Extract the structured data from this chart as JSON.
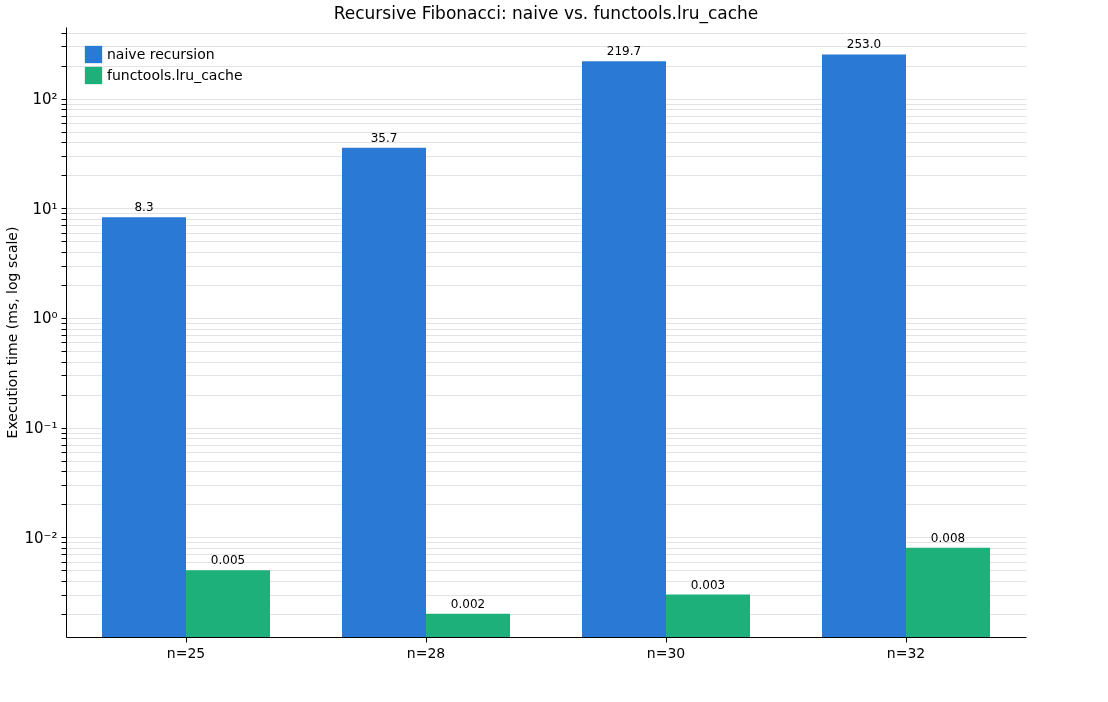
{
  "chart_data": {
    "type": "bar",
    "title": "Recursive Fibonacci: naive vs. functools.lru_cache",
    "ylabel": "Execution time (ms, log scale)",
    "categories": [
      "n=25",
      "n=28",
      "n=30",
      "n=32"
    ],
    "series": [
      {
        "name": "naive recursion",
        "color": "#2a7ad5",
        "values": [
          8.3,
          35.7,
          219.7,
          253.0
        ],
        "value_labels": [
          "8.3",
          "35.7",
          "219.7",
          "253.0"
        ]
      },
      {
        "name": "functools.lru_cache",
        "color": "#1db07a",
        "values": [
          0.005,
          0.002,
          0.003,
          0.008
        ],
        "value_labels": [
          "0.005",
          "0.002",
          "0.003",
          "0.008"
        ]
      }
    ],
    "log": "y",
    "ylim": [
      0.00123,
      450
    ],
    "yticks": [
      {
        "value": 0.002,
        "label": null
      },
      {
        "value": 0.003,
        "label": null
      },
      {
        "value": 0.004,
        "label": null
      },
      {
        "value": 0.005,
        "label": null
      },
      {
        "value": 0.006,
        "label": null
      },
      {
        "value": 0.007,
        "label": null
      },
      {
        "value": 0.008,
        "label": null
      },
      {
        "value": 0.009,
        "label": null
      },
      {
        "value": 0.01,
        "label": "10⁻²"
      },
      {
        "value": 0.02,
        "label": null
      },
      {
        "value": 0.03,
        "label": null
      },
      {
        "value": 0.04,
        "label": null
      },
      {
        "value": 0.05,
        "label": null
      },
      {
        "value": 0.06,
        "label": null
      },
      {
        "value": 0.07,
        "label": null
      },
      {
        "value": 0.08,
        "label": null
      },
      {
        "value": 0.09,
        "label": null
      },
      {
        "value": 0.1,
        "label": "10⁻¹"
      },
      {
        "value": 0.2,
        "label": null
      },
      {
        "value": 0.3,
        "label": null
      },
      {
        "value": 0.4,
        "label": null
      },
      {
        "value": 0.5,
        "label": null
      },
      {
        "value": 0.6,
        "label": null
      },
      {
        "value": 0.7,
        "label": null
      },
      {
        "value": 0.8,
        "label": null
      },
      {
        "value": 0.9,
        "label": null
      },
      {
        "value": 1,
        "label": "10⁰"
      },
      {
        "value": 2,
        "label": null
      },
      {
        "value": 3,
        "label": null
      },
      {
        "value": 4,
        "label": null
      },
      {
        "value": 5,
        "label": null
      },
      {
        "value": 6,
        "label": null
      },
      {
        "value": 7,
        "label": null
      },
      {
        "value": 8,
        "label": null
      },
      {
        "value": 9,
        "label": null
      },
      {
        "value": 10,
        "label": "10¹"
      },
      {
        "value": 20,
        "label": null
      },
      {
        "value": 30,
        "label": null
      },
      {
        "value": 40,
        "label": null
      },
      {
        "value": 50,
        "label": null
      },
      {
        "value": 60,
        "label": null
      },
      {
        "value": 70,
        "label": null
      },
      {
        "value": 80,
        "label": null
      },
      {
        "value": 90,
        "label": null
      },
      {
        "value": 100,
        "label": "10²"
      },
      {
        "value": 200,
        "label": null
      },
      {
        "value": 300,
        "label": null
      },
      {
        "value": 400,
        "label": null
      }
    ],
    "grid": "y",
    "legend": "top left"
  }
}
